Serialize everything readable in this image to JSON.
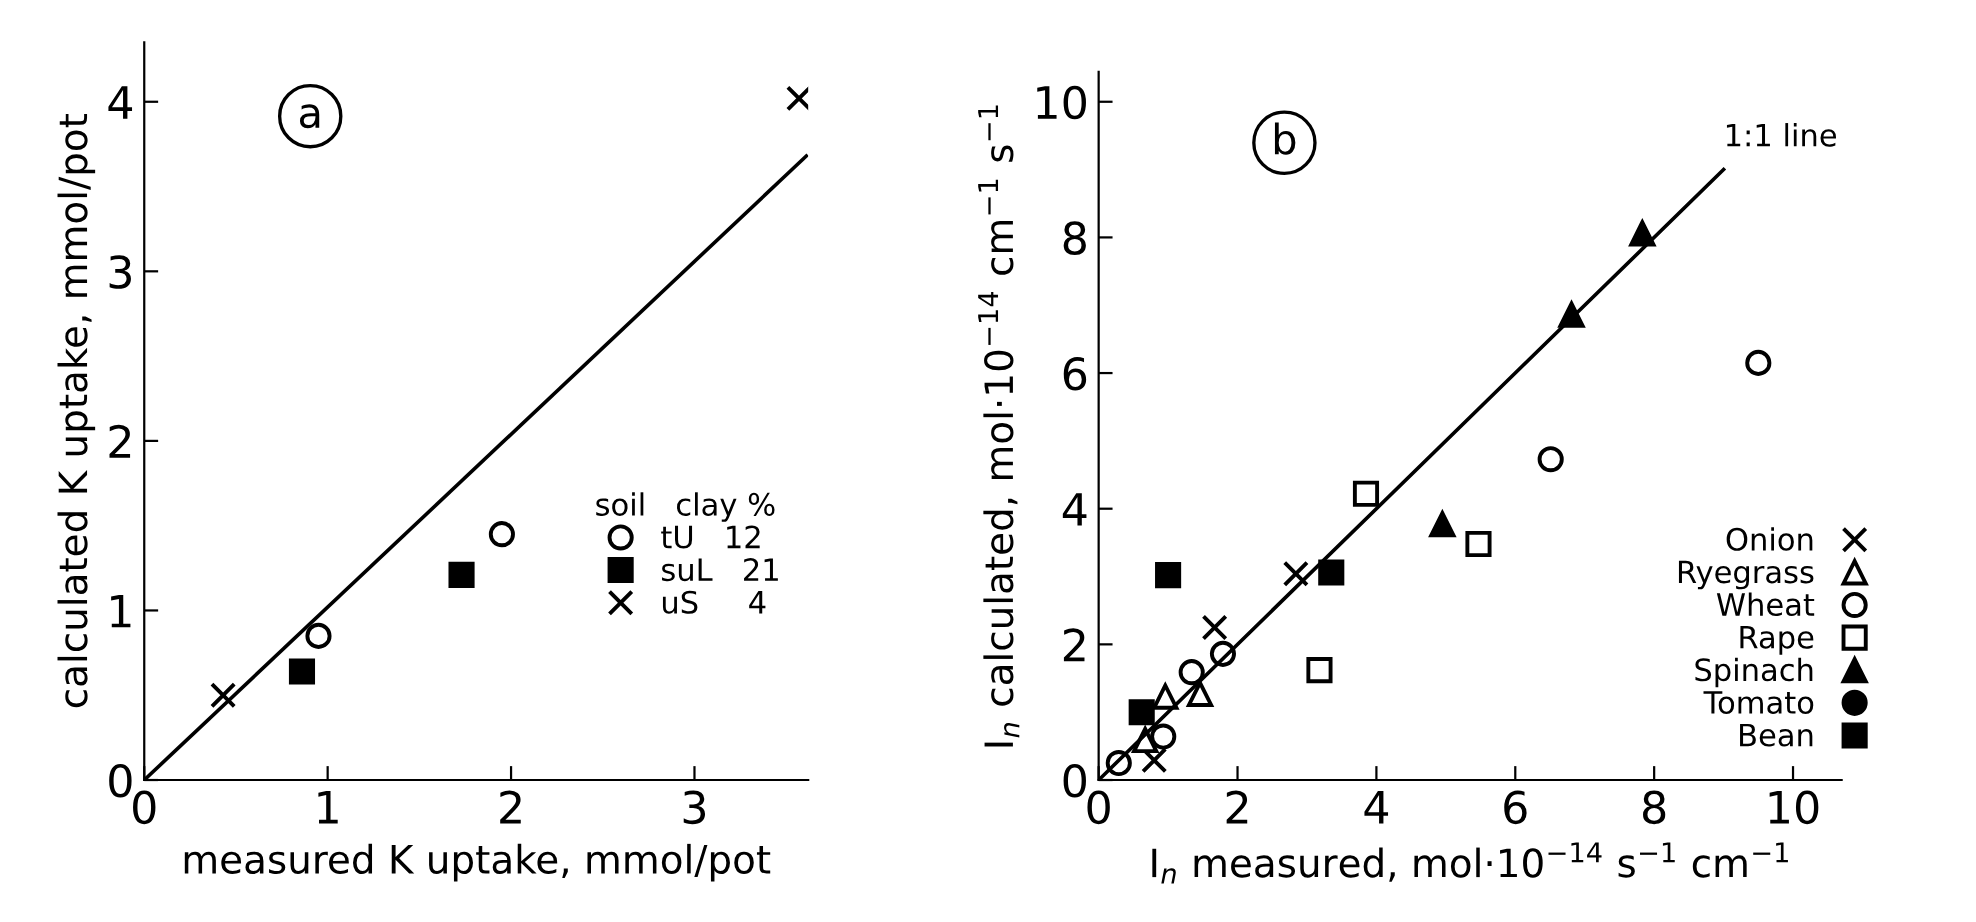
{
  "chart_data": [
    {
      "type": "scatter",
      "annotations": [
        "a"
      ],
      "xlabel": "measured K uptake, mmol/pot",
      "ylabel": "calculated K uptake, mmol/pot",
      "legend_title": "soil   clay %",
      "xlim": [
        0,
        3.62
      ],
      "ylim": [
        0,
        4.35
      ],
      "xticks": [
        0,
        1,
        2,
        3
      ],
      "yticks": [
        0,
        1,
        2,
        3,
        4
      ],
      "grid": false,
      "legend": "bottom right",
      "series": [
        {
          "name": "tU   12",
          "color": "#ffffff",
          "marker": "circle",
          "x": [
            0.95,
            1.95
          ],
          "values": [
            0.85,
            1.45
          ]
        },
        {
          "name": "suL   21",
          "color": "#000000",
          "marker": "square",
          "x": [
            0.86,
            1.73
          ],
          "values": [
            0.64,
            1.21
          ]
        },
        {
          "name": "uS     4",
          "color": "#000000",
          "marker": "cross",
          "x": [
            0.43,
            3.57
          ],
          "values": [
            0.5,
            4.02
          ]
        },
        {
          "type": "line",
          "color": "#000000",
          "x": [
            0,
            3.61
          ],
          "values": [
            0,
            3.68
          ]
        }
      ]
    },
    {
      "type": "scatter",
      "annotations": [
        "b"
      ],
      "xlabel": "I$_{n}$ measured, mol·10$^{−14}$ s$^{−1}$ cm$^{−1}$",
      "ylabel": "I$_{n}$ calculated, mol·10$^{−14}$ cm$^{−1}$ s$^{−1}$",
      "xlim": [
        0,
        10.7
      ],
      "ylim": [
        0,
        10.44
      ],
      "xticks": [
        0,
        2,
        4,
        6,
        8,
        10
      ],
      "yticks": [
        0,
        2,
        4,
        6,
        8,
        10
      ],
      "grid": false,
      "legend": "right",
      "series": [
        {
          "name": "Onion",
          "color": "#000000",
          "marker": "cross",
          "x": [
            0.8,
            1.67,
            2.84
          ],
          "values": [
            0.29,
            2.25,
            3.04
          ]
        },
        {
          "name": "Ryegrass",
          "color": "#ffffff",
          "marker": "triangle",
          "x": [
            0.67,
            0.96,
            1.46
          ],
          "values": [
            0.59,
            1.23,
            1.27
          ]
        },
        {
          "name": "Wheat",
          "color": "#ffffff",
          "marker": "circle",
          "x": [
            0.29,
            0.93,
            1.34,
            1.79,
            6.51,
            9.5
          ],
          "values": [
            0.25,
            0.64,
            1.59,
            1.86,
            4.73,
            6.15
          ]
        },
        {
          "name": "Rape",
          "color": "#ffffff",
          "marker": "square",
          "x": [
            3.18,
            3.85,
            5.47
          ],
          "values": [
            1.62,
            4.22,
            3.48
          ]
        },
        {
          "name": "Spinach",
          "color": "#000000",
          "marker": "triangle",
          "x": [
            4.95,
            6.81,
            7.83
          ],
          "values": [
            3.77,
            6.86,
            8.06
          ]
        },
        {
          "name": "Tomato",
          "color": "#000000",
          "marker": "circle"
        },
        {
          "name": "Bean",
          "color": "#000000",
          "marker": "square",
          "x": [
            0.62,
            1.0,
            3.35
          ],
          "values": [
            1.0,
            3.02,
            3.06
          ]
        },
        {
          "type": "line",
          "name": "1:1 line",
          "color": "#000000",
          "x": [
            0,
            9
          ],
          "values": [
            0,
            9
          ]
        }
      ]
    }
  ]
}
